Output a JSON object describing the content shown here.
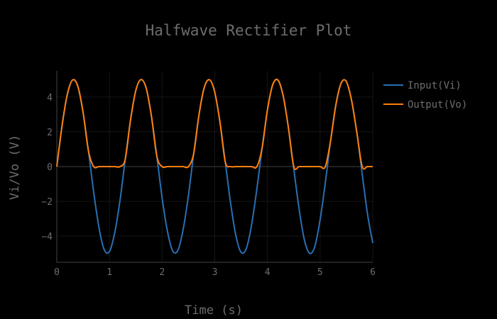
{
  "chart_data": {
    "type": "line",
    "title": "Halfwave Rectifier Plot",
    "xlabel": "Time (s)",
    "ylabel": "Vi/Vo (V)",
    "xlim": [
      0,
      6
    ],
    "ylim": [
      -5.5,
      5.5
    ],
    "x_ticks": [
      0,
      1,
      2,
      3,
      4,
      5,
      6
    ],
    "y_ticks": [
      -4,
      -2,
      0,
      2,
      4
    ],
    "y_tick_labels": [
      "−4",
      "−2",
      "0",
      "2",
      "4"
    ],
    "grid": true,
    "legend_position": "top-right",
    "x": [
      0,
      0.1,
      0.2,
      0.3,
      0.4,
      0.5,
      0.6,
      0.7,
      0.8,
      0.9,
      1.0,
      1.1,
      1.2,
      1.3,
      1.4,
      1.5,
      1.6,
      1.7,
      1.8,
      1.9,
      2.0,
      2.1,
      2.2,
      2.3,
      2.4,
      2.5,
      2.6,
      2.7,
      2.8,
      2.9,
      3.0,
      3.1,
      3.2,
      3.3,
      3.4,
      3.5,
      3.6,
      3.7,
      3.8,
      3.9,
      4.0,
      4.1,
      4.2,
      4.3,
      4.4,
      4.5,
      4.6,
      4.7,
      4.8,
      4.9,
      5.0,
      5.1,
      5.2,
      5.3,
      5.4,
      5.5,
      5.6,
      5.7,
      5.8,
      5.9,
      6.0
    ],
    "series": [
      {
        "name": "Input(Vi)",
        "color": "#2a6fb3",
        "values": [
          0,
          2.35,
          4.15,
          4.98,
          4.61,
          3.1,
          0.92,
          -1.46,
          -3.49,
          -4.77,
          -4.88,
          -3.8,
          -1.95,
          0.43,
          2.68,
          4.37,
          5.0,
          4.48,
          2.84,
          0.59,
          -1.8,
          -3.7,
          -4.84,
          -4.81,
          -3.6,
          -1.65,
          0.75,
          2.97,
          4.54,
          4.99,
          4.27,
          2.53,
          0.26,
          -2.09,
          -3.96,
          -4.93,
          -4.7,
          -3.33,
          -1.27,
          1.09,
          3.26,
          4.7,
          4.97,
          4.05,
          2.2,
          -0.12,
          -2.41,
          -4.19,
          -4.98,
          -4.59,
          -3.06,
          -0.91,
          1.5,
          3.55,
          4.8,
          4.88,
          3.77,
          1.91,
          -0.44,
          -2.72,
          -4.4
        ]
      },
      {
        "name": "Output(Vo)",
        "color": "#ff7f0e",
        "values": [
          0,
          2.35,
          4.15,
          4.98,
          4.61,
          3.1,
          0.92,
          0,
          0,
          0,
          0,
          0,
          0,
          0.43,
          2.68,
          4.37,
          5.0,
          4.48,
          2.84,
          0.59,
          0,
          0,
          0,
          0,
          0,
          0,
          0.75,
          2.97,
          4.54,
          4.99,
          4.27,
          2.53,
          0.26,
          0,
          0,
          0,
          0,
          0,
          0,
          1.09,
          3.26,
          4.7,
          4.97,
          4.05,
          2.2,
          0,
          0,
          0,
          0,
          0,
          0,
          0,
          1.5,
          3.55,
          4.8,
          4.88,
          3.77,
          1.91,
          0,
          0,
          0
        ]
      }
    ]
  }
}
